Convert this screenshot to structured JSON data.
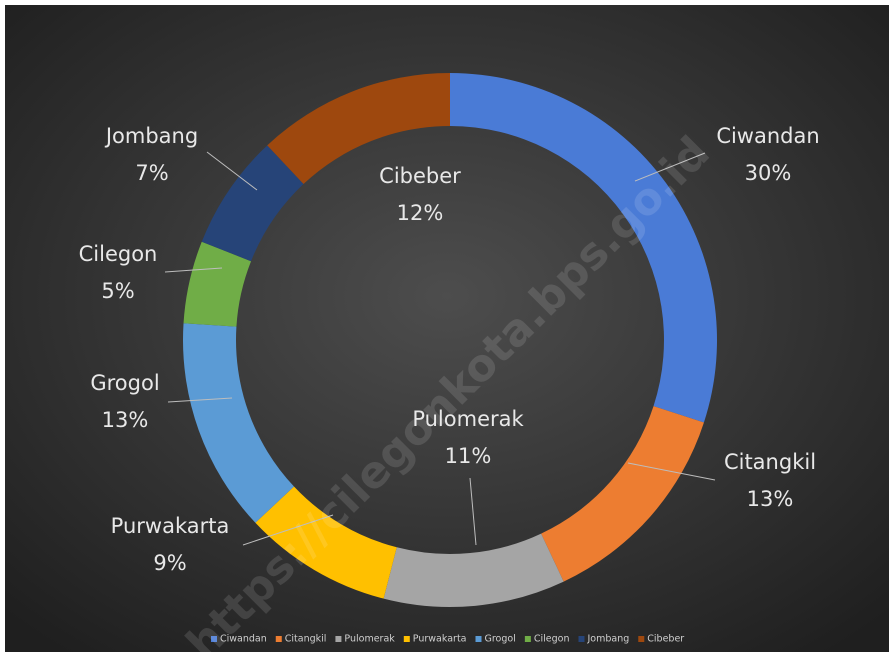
{
  "chart_data": {
    "type": "donut",
    "categories": [
      "Ciwandan",
      "Citangkil",
      "Pulomerak",
      "Purwakarta",
      "Grogol",
      "Cilegon",
      "Jombang",
      "Cibeber"
    ],
    "values": [
      30,
      13,
      11,
      9,
      13,
      5,
      7,
      12
    ],
    "value_labels": [
      "30%",
      "13%",
      "11%",
      "9%",
      "13%",
      "5%",
      "7%",
      "12%"
    ],
    "colors": [
      "#4a7bd6",
      "#ed7d31",
      "#a5a5a5",
      "#ffc000",
      "#5b9bd5",
      "#70ad47",
      "#264478",
      "#9e480e"
    ],
    "legend": "bottom",
    "watermark": "https://cilegonkota.bps.go.id"
  }
}
